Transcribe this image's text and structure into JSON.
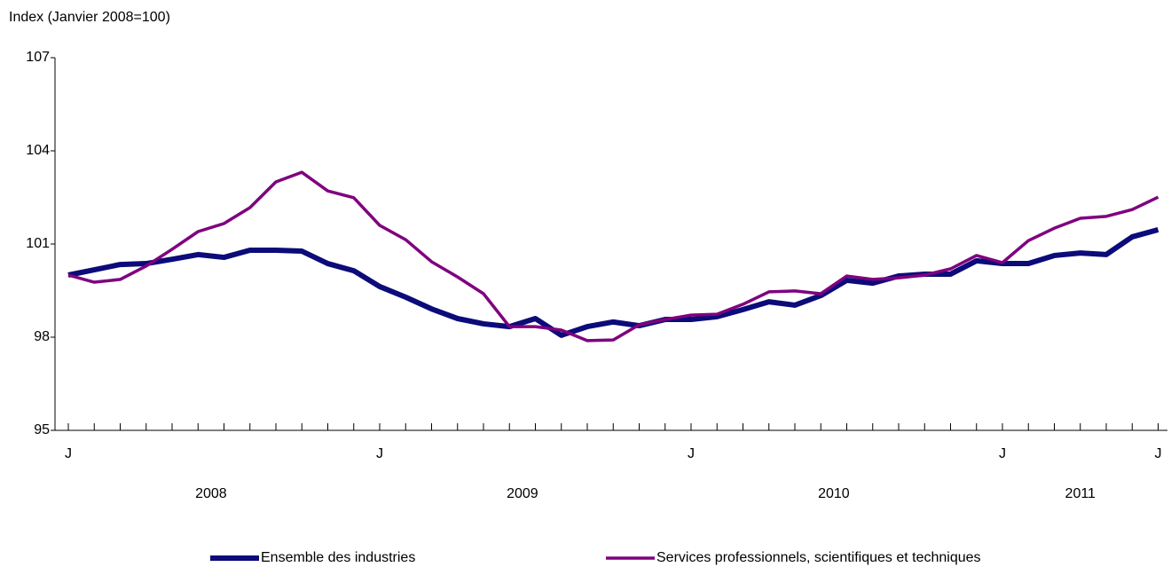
{
  "chart_data": {
    "type": "line",
    "y_axis_label": "Index (Janvier 2008=100)",
    "categories": [
      "J",
      null,
      null,
      null,
      null,
      null,
      null,
      null,
      null,
      null,
      null,
      null,
      "J",
      null,
      null,
      null,
      null,
      null,
      null,
      null,
      null,
      null,
      null,
      null,
      "J",
      null,
      null,
      null,
      null,
      null,
      null,
      null,
      null,
      null,
      null,
      null,
      "J",
      null,
      null,
      null,
      null,
      null,
      "J"
    ],
    "x_groups": [
      {
        "label": "2008",
        "from": 0,
        "to": 11
      },
      {
        "label": "2009",
        "from": 12,
        "to": 23
      },
      {
        "label": "2010",
        "from": 24,
        "to": 35
      },
      {
        "label": "2011",
        "from": 36,
        "to": 42
      }
    ],
    "ylim": [
      95,
      107
    ],
    "yticks": [
      95,
      98,
      101,
      104,
      107
    ],
    "grid": false,
    "legend": "bottom",
    "series": [
      {
        "name": "Ensemble des industries",
        "color": "#0b0b7a",
        "width": 6,
        "values": [
          100.0,
          100.17,
          100.34,
          100.37,
          100.51,
          100.66,
          100.57,
          100.8,
          100.8,
          100.77,
          100.37,
          100.14,
          99.63,
          99.29,
          98.91,
          98.6,
          98.43,
          98.34,
          98.6,
          98.06,
          98.34,
          98.49,
          98.37,
          98.57,
          98.57,
          98.66,
          98.89,
          99.14,
          99.03,
          99.34,
          99.83,
          99.74,
          99.97,
          100.03,
          100.03,
          100.46,
          100.37,
          100.37,
          100.63,
          100.71,
          100.66,
          101.23,
          101.46
        ]
      },
      {
        "name": "Services professionnels, scientifiques et techniques",
        "color": "#7f007f",
        "width": 3.5,
        "values": [
          100.0,
          99.77,
          99.86,
          100.29,
          100.83,
          101.4,
          101.66,
          102.17,
          103.0,
          103.31,
          102.71,
          102.49,
          101.6,
          101.14,
          100.43,
          99.94,
          99.4,
          98.34,
          98.34,
          98.23,
          97.89,
          97.91,
          98.4,
          98.57,
          98.71,
          98.74,
          99.06,
          99.46,
          99.49,
          99.4,
          99.97,
          99.86,
          99.91,
          100.0,
          100.2,
          100.63,
          100.4,
          101.11,
          101.51,
          101.83,
          101.89,
          102.11,
          102.51
        ]
      }
    ]
  }
}
